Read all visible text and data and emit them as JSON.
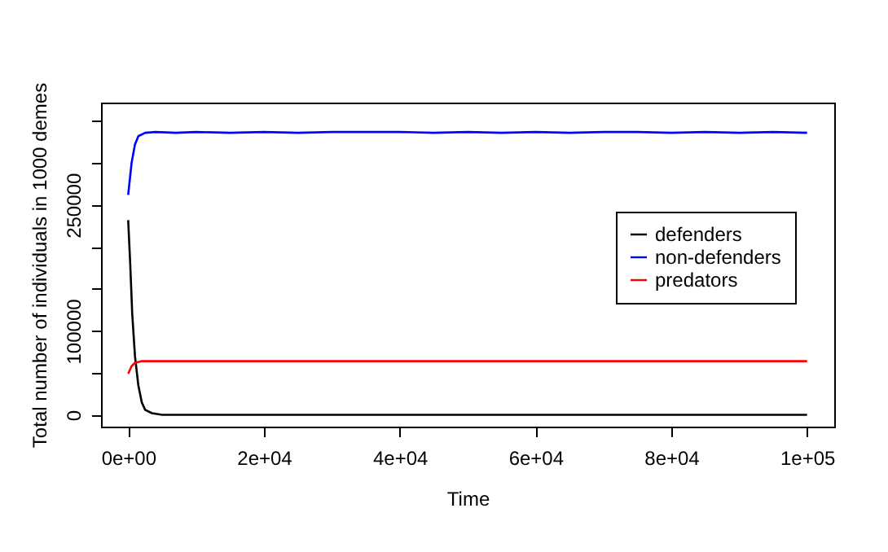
{
  "chart_data": {
    "type": "line",
    "xlabel": "Time",
    "ylabel": "Total number of individuals in 1000 demes",
    "xlim": [
      -4000,
      104000
    ],
    "ylim": [
      -14000,
      372000
    ],
    "xticks": [
      {
        "value": 0,
        "label": "0e+00"
      },
      {
        "value": 20000,
        "label": "2e+04"
      },
      {
        "value": 40000,
        "label": "4e+04"
      },
      {
        "value": 60000,
        "label": "6e+04"
      },
      {
        "value": 80000,
        "label": "8e+04"
      },
      {
        "value": 100000,
        "label": "1e+05"
      }
    ],
    "yticks": [
      0,
      {
        "value": 50000,
        "label": null
      },
      100000,
      {
        "value": 150000,
        "label": null
      },
      {
        "value": 200000,
        "label": null
      },
      250000,
      {
        "value": 300000,
        "label": null
      },
      {
        "value": 350000,
        "label": null
      }
    ],
    "grid": false,
    "legend": "right",
    "marker": "none",
    "line_style": "solid",
    "series": [
      {
        "name": "defenders",
        "color": "#000000",
        "x": [
          0,
          300,
          600,
          1000,
          1500,
          2000,
          2500,
          3500,
          5000,
          100000
        ],
        "values": [
          232000,
          180000,
          120000,
          70000,
          35000,
          15000,
          6000,
          2000,
          0,
          0
        ]
      },
      {
        "name": "non-defenders",
        "color": "#0000ff",
        "x": [
          0,
          500,
          1000,
          1500,
          2500,
          4000,
          7000,
          10000,
          15000,
          20000,
          25000,
          30000,
          35000,
          40000,
          45000,
          50000,
          55000,
          60000,
          65000,
          70000,
          75000,
          80000,
          85000,
          90000,
          95000,
          100000
        ],
        "values": [
          262000,
          300000,
          322000,
          332000,
          336000,
          337000,
          336000,
          337000,
          336000,
          337000,
          336000,
          337000,
          337000,
          337000,
          336000,
          337000,
          336000,
          337000,
          336000,
          337000,
          337000,
          336000,
          337000,
          336000,
          337000,
          336000
        ]
      },
      {
        "name": "predators",
        "color": "#ff0000",
        "x": [
          0,
          500,
          1000,
          2000,
          100000
        ],
        "values": [
          49000,
          58000,
          62000,
          64000,
          64000
        ]
      }
    ]
  }
}
